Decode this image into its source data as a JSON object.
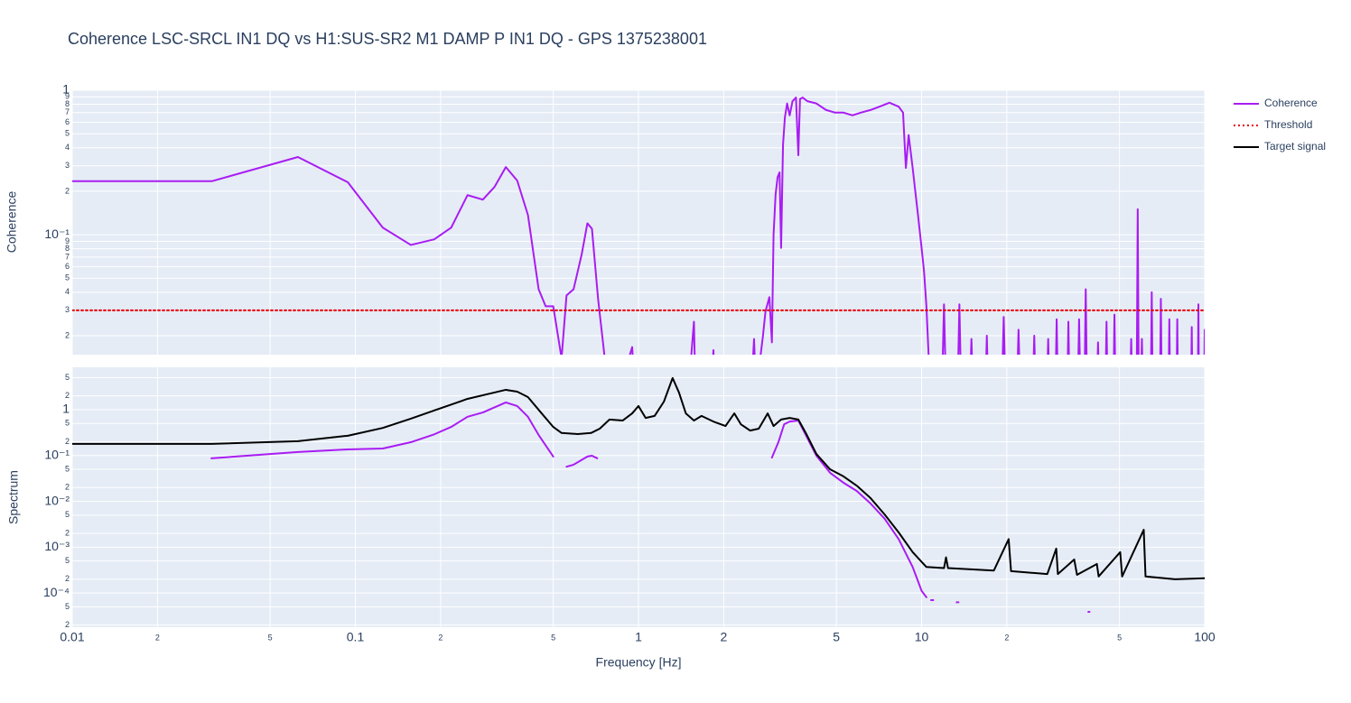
{
  "chart_data": [
    {
      "type": "line",
      "title": "Coherence LSC-SRCL IN1 DQ vs H1:SUS-SR2 M1 DAMP P IN1 DQ - GPS 1375238001",
      "ylabel": "Coherence",
      "log_x": true,
      "log_y": true,
      "grid": true,
      "legend": "right",
      "xlim": [
        0.01,
        100
      ],
      "ylim": [
        0.0148,
        1
      ],
      "yticks": [
        {
          "value": 0.02,
          "label": "2"
        },
        {
          "value": 0.03,
          "label": "3"
        },
        {
          "value": 0.04,
          "label": "4"
        },
        {
          "value": 0.05,
          "label": "5"
        },
        {
          "value": 0.06,
          "label": "6"
        },
        {
          "value": 0.07,
          "label": "7"
        },
        {
          "value": 0.08,
          "label": "8"
        },
        {
          "value": 0.09,
          "label": "9"
        },
        {
          "value": 0.1,
          "label": "10⁻¹"
        },
        {
          "value": 0.2,
          "label": "2"
        },
        {
          "value": 0.3,
          "label": "3"
        },
        {
          "value": 0.4,
          "label": "4"
        },
        {
          "value": 0.5,
          "label": "5"
        },
        {
          "value": 0.6,
          "label": "6"
        },
        {
          "value": 0.7,
          "label": "7"
        },
        {
          "value": 0.8,
          "label": "8"
        },
        {
          "value": 0.9,
          "label": "9"
        },
        1
      ],
      "series": [
        {
          "name": "Coherence",
          "color": "#a91cf2",
          "x": [
            0.01,
            0.0312,
            0.0627,
            0.094,
            0.125,
            0.157,
            0.19,
            0.218,
            0.249,
            0.282,
            0.31,
            0.34,
            0.373,
            0.407,
            0.444,
            0.47,
            0.5,
            0.535,
            0.557,
            0.59,
            0.63,
            0.66,
            0.685,
            0.72,
            0.76,
            0.85,
            0.95,
            0.97,
            1.5,
            1.57,
            1.59,
            1.8,
            1.84,
            1.86,
            2.5,
            2.56,
            2.6,
            2.75,
            2.81,
            2.9,
            2.96,
            3.0,
            3.05,
            3.1,
            3.15,
            3.19,
            3.24,
            3.29,
            3.35,
            3.42,
            3.5,
            3.6,
            3.67,
            3.72,
            3.8,
            3.95,
            4.25,
            4.6,
            4.95,
            5.3,
            5.7,
            6.1,
            6.6,
            7.1,
            7.7,
            8.3,
            8.6,
            8.8,
            9.0,
            9.3,
            9.5,
            9.7,
            10.0,
            10.2,
            10.4,
            10.6,
            11.8,
            12,
            12.2,
            13.4,
            13.6,
            13.8,
            14.8,
            15,
            15.2,
            16.8,
            17,
            17.2,
            19.2,
            19.5,
            19.8,
            21.7,
            22,
            22.3,
            24.7,
            25,
            25.3,
            27.7,
            28,
            28.3,
            29.7,
            30,
            30.3,
            32.7,
            33,
            33.3,
            35.6,
            36,
            36.4,
            37.6,
            38,
            38.4,
            41.6,
            42,
            42.4,
            44.6,
            45,
            45.4,
            47.6,
            48,
            48.4,
            54.5,
            55,
            55.5,
            57.5,
            58,
            58.5,
            59.5,
            60,
            60.5,
            64.5,
            65,
            65.5,
            69.5,
            70,
            70.5,
            74.5,
            75,
            75.5,
            79.5,
            80,
            80.5,
            89.5,
            90,
            90.5,
            94.5,
            95,
            95.5,
            99.5,
            100
          ],
          "values": [
            0.235,
            0.235,
            0.345,
            0.231,
            0.112,
            0.085,
            0.093,
            0.112,
            0.188,
            0.175,
            0.214,
            0.294,
            0.237,
            0.137,
            0.042,
            0.032,
            0.032,
            0.014,
            0.038,
            0.042,
            0.073,
            0.12,
            0.11,
            0.036,
            0.014,
            0.008,
            0.0167,
            0.008,
            0.008,
            0.025,
            0.008,
            0.008,
            0.0159,
            0.008,
            0.008,
            0.019,
            0.008,
            0.0197,
            0.0295,
            0.037,
            0.018,
            0.1,
            0.19,
            0.25,
            0.27,
            0.081,
            0.42,
            0.65,
            0.81,
            0.67,
            0.84,
            0.89,
            0.355,
            0.87,
            0.89,
            0.84,
            0.81,
            0.73,
            0.7,
            0.7,
            0.67,
            0.7,
            0.73,
            0.77,
            0.82,
            0.77,
            0.7,
            0.29,
            0.49,
            0.29,
            0.2,
            0.14,
            0.081,
            0.056,
            0.032,
            0.014,
            0.008,
            0.033,
            0.008,
            0.008,
            0.033,
            0.008,
            0.008,
            0.019,
            0.008,
            0.008,
            0.02,
            0.008,
            0.008,
            0.027,
            0.008,
            0.008,
            0.022,
            0.008,
            0.008,
            0.02,
            0.008,
            0.008,
            0.019,
            0.008,
            0.008,
            0.026,
            0.008,
            0.008,
            0.025,
            0.008,
            0.008,
            0.026,
            0.008,
            0.008,
            0.042,
            0.008,
            0.008,
            0.018,
            0.008,
            0.008,
            0.025,
            0.008,
            0.008,
            0.028,
            0.008,
            0.008,
            0.019,
            0.008,
            0.008,
            0.15,
            0.008,
            0.008,
            0.019,
            0.008,
            0.008,
            0.04,
            0.008,
            0.008,
            0.036,
            0.008,
            0.008,
            0.026,
            0.008,
            0.008,
            0.026,
            0.008,
            0.008,
            0.023,
            0.008,
            0.008,
            0.033,
            0.008,
            0.008,
            0.022
          ]
        },
        {
          "name": "Threshold",
          "color": "#e8000b",
          "dash": "dot",
          "x": [
            0.01,
            100
          ],
          "values": [
            0.03,
            0.03
          ]
        }
      ]
    },
    {
      "type": "line",
      "xlabel": "Frequency [Hz]",
      "ylabel": "Spectrum",
      "log_x": true,
      "log_y": true,
      "grid": true,
      "xlim": [
        0.01,
        100
      ],
      "ylim": [
        1.8e-05,
        8.4
      ],
      "xticks": [
        0.01,
        {
          "value": 0.02,
          "label": "2"
        },
        {
          "value": 0.05,
          "label": "5"
        },
        0.1,
        {
          "value": 0.2,
          "label": "2"
        },
        {
          "value": 0.5,
          "label": "5"
        },
        1,
        2,
        5,
        10,
        {
          "value": 20,
          "label": "2"
        },
        {
          "value": 50,
          "label": "5"
        },
        100
      ],
      "yticks": [
        {
          "value": 2e-05,
          "label": "2"
        },
        {
          "value": 5e-05,
          "label": "5"
        },
        {
          "value": 0.0001,
          "label": "10⁻⁴"
        },
        {
          "value": 0.0002,
          "label": "2"
        },
        {
          "value": 0.0005,
          "label": "5"
        },
        {
          "value": 0.001,
          "label": "10⁻³"
        },
        {
          "value": 0.002,
          "label": "2"
        },
        {
          "value": 0.005,
          "label": "5"
        },
        {
          "value": 0.01,
          "label": "10⁻²"
        },
        {
          "value": 0.02,
          "label": "2"
        },
        {
          "value": 0.05,
          "label": "5"
        },
        {
          "value": 0.1,
          "label": "10⁻¹"
        },
        {
          "value": 0.2,
          "label": "2"
        },
        {
          "value": 0.5,
          "label": "5"
        },
        1,
        2,
        5
      ],
      "series": [
        {
          "color": "#a91cf2",
          "x": [
            0.031,
            0.0627,
            0.094,
            0.125,
            0.157,
            0.19,
            0.218,
            0.249,
            0.282,
            0.34,
            0.373,
            0.407,
            0.444,
            0.5,
            null,
            0.557,
            0.59,
            0.66,
            0.685,
            0.715,
            null,
            2.96,
            3.12,
            3.27,
            3.42,
            3.67,
            3.9,
            4.25,
            4.75,
            5.3,
            5.9,
            6.6,
            7.4,
            8.3,
            9.3,
            10.0,
            10.4,
            null,
            10.8,
            11,
            null,
            13.3,
            13.5,
            null,
            38.8,
            39.2
          ],
          "values": [
            0.087,
            0.119,
            0.136,
            0.142,
            0.195,
            0.29,
            0.42,
            0.7,
            0.87,
            1.44,
            1.2,
            0.7,
            0.28,
            0.095,
            null,
            0.057,
            0.063,
            0.095,
            0.099,
            0.087,
            null,
            0.09,
            0.195,
            0.48,
            0.55,
            0.58,
            0.28,
            0.099,
            0.042,
            0.0254,
            0.0169,
            0.009,
            0.0042,
            0.0015,
            0.00037,
            0.000112,
            8.1e-05,
            null,
            7e-05,
            7e-05,
            null,
            6.3e-05,
            6.3e-05,
            null,
            3.9e-05,
            3.9e-05
          ]
        },
        {
          "name": "Target signal",
          "color": "#000000",
          "x": [
            0.01,
            0.031,
            0.0627,
            0.094,
            0.125,
            0.157,
            0.19,
            0.249,
            0.31,
            0.34,
            0.373,
            0.407,
            0.455,
            0.5,
            0.535,
            0.61,
            0.68,
            0.73,
            0.79,
            0.88,
            0.95,
            1.0,
            1.06,
            1.14,
            1.23,
            1.32,
            1.39,
            1.47,
            1.57,
            1.67,
            1.84,
            2.03,
            2.18,
            2.3,
            2.48,
            2.66,
            2.86,
            3.0,
            3.19,
            3.42,
            3.67,
            3.9,
            4.25,
            4.75,
            5.3,
            5.9,
            6.6,
            7.4,
            8.3,
            9.3,
            10.4,
            12,
            12.2,
            12.4,
            18,
            20.3,
            20.7,
            27.8,
            29.9,
            30.3,
            34.6,
            35.4,
            41.6,
            42.2,
            50.3,
            51.1,
            60.9,
            61.8,
            78.6,
            100
          ],
          "values": [
            0.179,
            0.179,
            0.205,
            0.27,
            0.4,
            0.636,
            0.96,
            1.72,
            2.37,
            2.71,
            2.47,
            1.88,
            0.83,
            0.42,
            0.31,
            0.294,
            0.31,
            0.385,
            0.61,
            0.58,
            0.83,
            1.2,
            0.66,
            0.73,
            1.5,
            4.9,
            2.37,
            0.83,
            0.58,
            0.73,
            0.55,
            0.44,
            0.83,
            0.48,
            0.35,
            0.385,
            0.83,
            0.44,
            0.61,
            0.66,
            0.61,
            0.31,
            0.108,
            0.05,
            0.035,
            0.022,
            0.0118,
            0.0052,
            0.0021,
            0.00078,
            0.00037,
            0.00035,
            0.0006,
            0.00035,
            0.00031,
            0.0015,
            0.0003,
            0.00026,
            0.00093,
            0.00026,
            0.00054,
            0.00025,
            0.00043,
            0.00023,
            0.00078,
            0.00023,
            0.0024,
            0.00023,
            0.0002,
            0.00021
          ]
        }
      ]
    }
  ]
}
